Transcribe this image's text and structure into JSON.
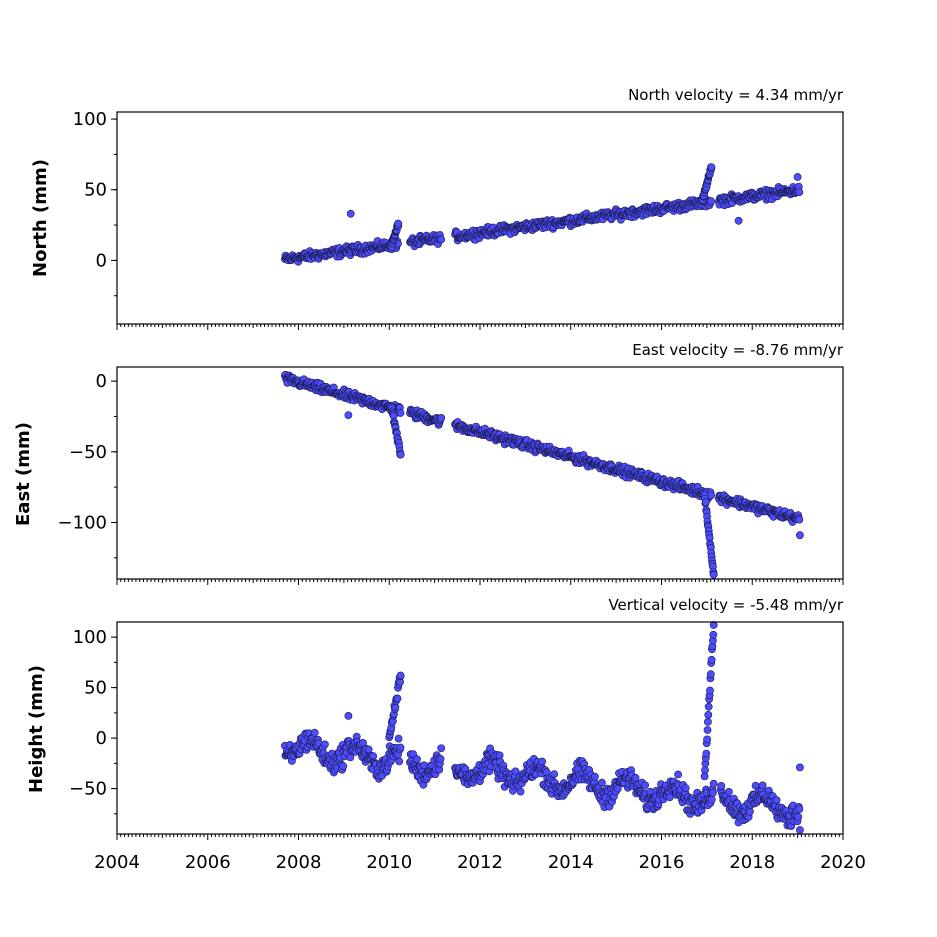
{
  "chart_data": [
    {
      "type": "scatter",
      "ylabel": "North (mm)",
      "annotation": "North velocity = 4.34 mm/yr",
      "xlim": [
        2004,
        2020
      ],
      "ylim": [
        -45,
        105
      ],
      "yticks": [
        0,
        50,
        100
      ],
      "ytick_labels": [
        "0",
        "50",
        "100"
      ],
      "color": "#4d4dff",
      "trend": {
        "rate": 4.34,
        "intercept_2008": 2
      },
      "gaps": [
        [
          2010.2,
          2010.45
        ],
        [
          2011.15,
          2011.45
        ],
        [
          2017.1,
          2017.25
        ]
      ],
      "features": [
        {
          "kind": "spike",
          "x": 2009.15,
          "y": 33
        },
        {
          "kind": "rise",
          "x": 2010.05,
          "to": 2010.2,
          "y": [
            10,
            26
          ]
        },
        {
          "kind": "rise",
          "x": 2016.9,
          "to": 2017.1,
          "y": [
            42,
            66
          ]
        },
        {
          "kind": "spike",
          "x": 2017.7,
          "y": 28
        },
        {
          "kind": "spike",
          "x": 2019.0,
          "y": 59
        }
      ]
    },
    {
      "type": "scatter",
      "ylabel": "East (mm)",
      "annotation": "East velocity = -8.76 mm/yr",
      "xlim": [
        2004,
        2020
      ],
      "ylim": [
        -140,
        10
      ],
      "yticks": [
        0,
        -50,
        -100
      ],
      "ytick_labels": [
        "0",
        "−50",
        "−100"
      ],
      "color": "#4d4dff",
      "trend": {
        "rate": -8.76,
        "intercept_2008": -1
      },
      "gaps": [
        [
          2010.25,
          2010.45
        ],
        [
          2011.15,
          2011.45
        ],
        [
          2017.1,
          2017.25
        ]
      ],
      "features": [
        {
          "kind": "spike",
          "x": 2009.1,
          "y": -24
        },
        {
          "kind": "drop",
          "x": 2010.05,
          "to": 2010.25,
          "y": [
            -18,
            -52
          ]
        },
        {
          "kind": "drop",
          "x": 2016.95,
          "to": 2017.15,
          "y": [
            -80,
            -137
          ]
        },
        {
          "kind": "spike",
          "x": 2019.05,
          "y": -109
        }
      ]
    },
    {
      "type": "scatter",
      "ylabel": "Height (mm)",
      "annotation": "Vertical velocity = -5.48 mm/yr",
      "xlim": [
        2004,
        2020
      ],
      "ylim": [
        -95,
        115
      ],
      "yticks": [
        100,
        50,
        0,
        -50
      ],
      "ytick_labels": [
        "100",
        "50",
        "0",
        "−50"
      ],
      "xticks": [
        2004,
        2006,
        2008,
        2010,
        2012,
        2014,
        2016,
        2018,
        2020
      ],
      "xtick_labels": [
        "2004",
        "2006",
        "2008",
        "2010",
        "2012",
        "2014",
        "2016",
        "2018",
        "2020"
      ],
      "color": "#4d4dff",
      "trend": {
        "rate": -5.48,
        "intercept_2008": -10
      },
      "gaps": [
        [
          2010.25,
          2010.45
        ],
        [
          2011.15,
          2011.45
        ],
        [
          2017.15,
          2017.3
        ]
      ],
      "features": [
        {
          "kind": "spike",
          "x": 2009.1,
          "y": 22
        },
        {
          "kind": "rise",
          "x": 2010.0,
          "to": 2010.25,
          "y": [
            0,
            62
          ]
        },
        {
          "kind": "rise",
          "x": 2016.95,
          "to": 2017.15,
          "y": [
            -40,
            112
          ]
        },
        {
          "kind": "spike",
          "x": 2019.05,
          "y": -91
        },
        {
          "kind": "spike",
          "x": 2019.05,
          "y": -29
        }
      ]
    }
  ]
}
